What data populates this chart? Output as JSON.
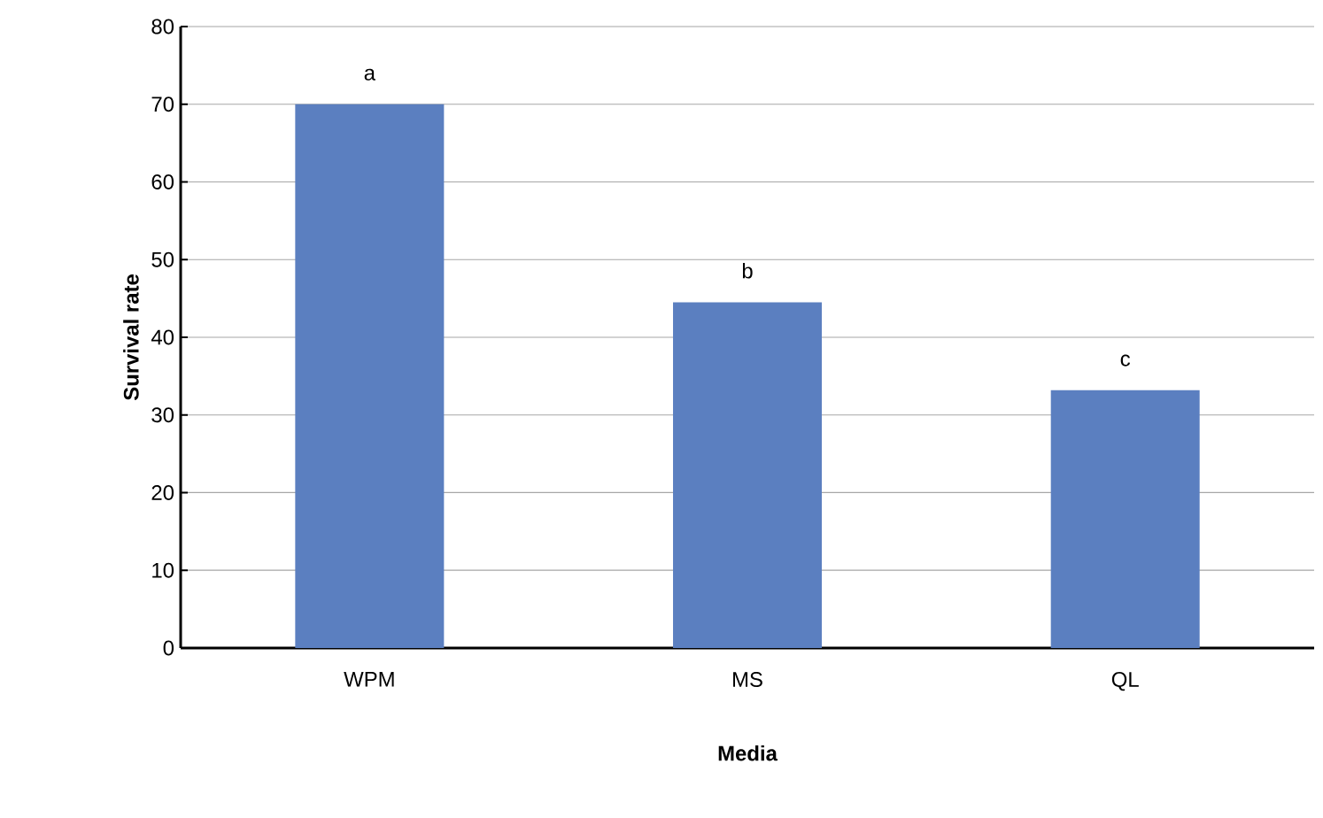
{
  "chart_data": {
    "type": "bar",
    "xlabel": "Media",
    "ylabel": "Survival rate",
    "categories": [
      "WPM",
      "MS",
      "QL"
    ],
    "values": [
      70,
      44.5,
      33.2
    ],
    "color": "#5b7fc0",
    "ylim": [
      0,
      80
    ],
    "yticks": [
      0,
      10,
      20,
      30,
      40,
      50,
      60,
      70,
      80
    ],
    "grid": "y",
    "annotations": [
      {
        "text": "a",
        "x": "WPM",
        "y": 70
      },
      {
        "text": "b",
        "x": "MS",
        "y": 44.5
      },
      {
        "text": "c",
        "x": "QL",
        "y": 33.2
      }
    ]
  }
}
